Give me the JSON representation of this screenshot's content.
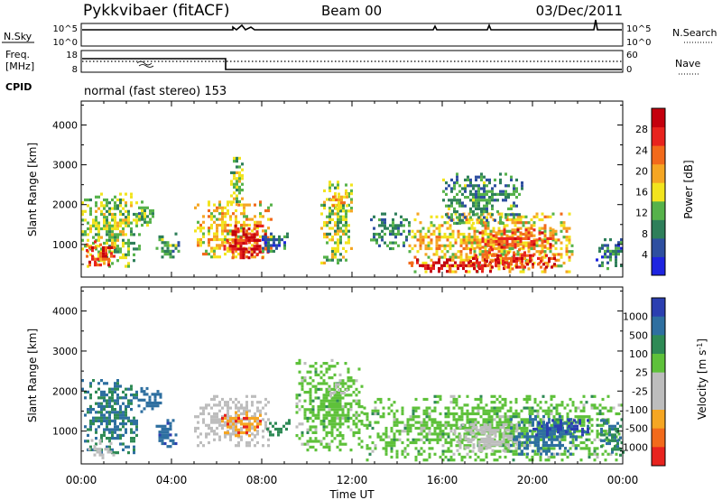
{
  "header": {
    "station": "Pykkvibaer (fitACF)",
    "beam": "Beam 00",
    "date": "03/Dec/2011"
  },
  "summary": {
    "nsky_label": "N.Sky",
    "nsearch_label": "N.Search",
    "freq_label_1": "Freq.",
    "freq_label_2": "[MHz]",
    "nave_label": "Nave",
    "cpid_label": "CPID",
    "cpid_text": "normal (fast stereo) 153",
    "nsky_ticks": [
      "10^5",
      "10^0"
    ],
    "nsearch_ticks": [
      "10^5",
      "10^0"
    ],
    "freq_ticks": [
      "18",
      "8"
    ],
    "nave_ticks": [
      "60",
      "0"
    ]
  },
  "colors": {
    "power": [
      "#1E24E0",
      "#2E4FA0",
      "#2E7F5A",
      "#56B24A",
      "#F2E41E",
      "#F5A623",
      "#F26A1B",
      "#E8231E",
      "#C4000E"
    ],
    "velocity": [
      "#2B3FB0",
      "#2E6FA0",
      "#2E8A55",
      "#5EC13A",
      "#BDBDBD",
      "#BDBDBD",
      "#F5A623",
      "#F26A1B",
      "#E8231E"
    ]
  },
  "chart_data": [
    {
      "type": "heatmap",
      "panel": "power",
      "title": "",
      "xlabel": "Time UT",
      "ylabel": "Slant Range [km]",
      "x_ticks": [
        "00:00",
        "04:00",
        "08:00",
        "12:00",
        "16:00",
        "20:00",
        "00:00"
      ],
      "x_range_hours": [
        0,
        24
      ],
      "y_ticks": [
        "1000",
        "2000",
        "3000",
        "4000"
      ],
      "ylim": [
        180,
        4600
      ],
      "colorbar_label": "Power [dB]",
      "colorbar_ticks": [
        "4",
        "8",
        "12",
        "16",
        "20",
        "24",
        "28"
      ],
      "colorbar_range": [
        0,
        32
      ],
      "regions": [
        {
          "t": [
            0.0,
            2.6
          ],
          "r": [
            450,
            2300
          ],
          "v": 14
        },
        {
          "t": [
            0.2,
            1.5
          ],
          "r": [
            500,
            1100
          ],
          "v": 26
        },
        {
          "t": [
            2.4,
            3.2
          ],
          "r": [
            1500,
            2100
          ],
          "v": 12
        },
        {
          "t": [
            3.3,
            4.3
          ],
          "r": [
            650,
            1300
          ],
          "v": 10
        },
        {
          "t": [
            5.0,
            8.4
          ],
          "r": [
            650,
            2100
          ],
          "v": 18
        },
        {
          "t": [
            6.3,
            8.3
          ],
          "r": [
            700,
            1500
          ],
          "v": 29
        },
        {
          "t": [
            6.6,
            7.2
          ],
          "r": [
            1900,
            3200
          ],
          "v": 14
        },
        {
          "t": [
            8.0,
            9.2
          ],
          "r": [
            850,
            1300
          ],
          "v": 7
        },
        {
          "t": [
            10.6,
            12.0
          ],
          "r": [
            500,
            2600
          ],
          "v": 14
        },
        {
          "t": [
            11.0,
            11.8
          ],
          "r": [
            1900,
            2300
          ],
          "v": 20
        },
        {
          "t": [
            12.8,
            14.5
          ],
          "r": [
            900,
            1800
          ],
          "v": 9
        },
        {
          "t": [
            14.5,
            21.8
          ],
          "r": [
            300,
            1800
          ],
          "v": 18
        },
        {
          "t": [
            14.6,
            19.0
          ],
          "r": [
            350,
            650
          ],
          "v": 29
        },
        {
          "t": [
            17.2,
            21.0
          ],
          "r": [
            400,
            900
          ],
          "v": 26
        },
        {
          "t": [
            17.5,
            21.0
          ],
          "r": [
            900,
            1400
          ],
          "v": 24
        },
        {
          "t": [
            16.0,
            19.5
          ],
          "r": [
            1500,
            2800
          ],
          "v": 10
        },
        {
          "t": [
            22.8,
            24.0
          ],
          "r": [
            400,
            1300
          ],
          "v": 8
        }
      ]
    },
    {
      "type": "heatmap",
      "panel": "velocity",
      "title": "",
      "xlabel": "Time UT",
      "ylabel": "Slant Range [km]",
      "x_ticks": [
        "00:00",
        "04:00",
        "08:00",
        "12:00",
        "16:00",
        "20:00",
        "00:00"
      ],
      "x_range_hours": [
        0,
        24
      ],
      "y_ticks": [
        "1000",
        "2000",
        "3000",
        "4000"
      ],
      "ylim": [
        180,
        4600
      ],
      "colorbar_label": "Velocity [m s^-1]",
      "colorbar_ticks": [
        "1000",
        "500",
        "100",
        "25",
        "-25",
        "-100",
        "-500",
        "-1000"
      ],
      "regions": [
        {
          "t": [
            0.0,
            2.5
          ],
          "r": [
            450,
            2300
          ],
          "v": 100
        },
        {
          "t": [
            0.3,
            1.5
          ],
          "r": [
            350,
            800
          ],
          "v": -200
        },
        {
          "t": [
            2.5,
            3.5
          ],
          "r": [
            1500,
            2100
          ],
          "v": 300
        },
        {
          "t": [
            3.3,
            4.2
          ],
          "r": [
            650,
            1300
          ],
          "v": 400
        },
        {
          "t": [
            5.0,
            8.3
          ],
          "r": [
            650,
            1900
          ],
          "v": -300
        },
        {
          "t": [
            6.2,
            8.0
          ],
          "r": [
            900,
            1500
          ],
          "v": -800
        },
        {
          "t": [
            8.2,
            9.2
          ],
          "r": [
            900,
            1300
          ],
          "v": 60
        },
        {
          "t": [
            9.5,
            12.5
          ],
          "r": [
            500,
            2800
          ],
          "v": 0
        },
        {
          "t": [
            11.0,
            11.8
          ],
          "r": [
            1900,
            2200
          ],
          "v": -300
        },
        {
          "t": [
            12.5,
            24.0
          ],
          "r": [
            300,
            1900
          ],
          "v": 0
        },
        {
          "t": [
            16.5,
            19.5
          ],
          "r": [
            500,
            1200
          ],
          "v": -300
        },
        {
          "t": [
            19.0,
            22.0
          ],
          "r": [
            400,
            1400
          ],
          "v": 200
        },
        {
          "t": [
            20.0,
            22.5
          ],
          "r": [
            900,
            1300
          ],
          "v": 700
        },
        {
          "t": [
            23.0,
            24.0
          ],
          "r": [
            400,
            1300
          ],
          "v": 100
        }
      ]
    }
  ]
}
